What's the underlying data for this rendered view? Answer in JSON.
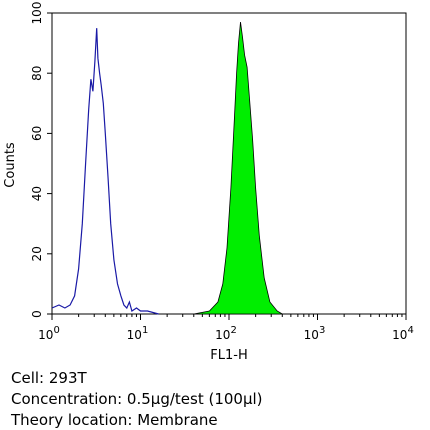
{
  "chart_data": {
    "type": "area",
    "xlabel": "FL1-H",
    "ylabel": "Counts",
    "xscale": "log",
    "xlim": [
      1,
      10000
    ],
    "ylim": [
      0,
      100
    ],
    "x_ticks": [
      {
        "value": 1,
        "base": "10",
        "exp": "0"
      },
      {
        "value": 10,
        "base": "10",
        "exp": "1"
      },
      {
        "value": 100,
        "base": "10",
        "exp": "2"
      },
      {
        "value": 1000,
        "base": "10",
        "exp": "3"
      },
      {
        "value": 10000,
        "base": "10",
        "exp": "4"
      }
    ],
    "y_ticks": [
      {
        "value": 0,
        "label": "0"
      },
      {
        "value": 20,
        "label": "20"
      },
      {
        "value": 40,
        "label": "40"
      },
      {
        "value": 60,
        "label": "60"
      },
      {
        "value": 80,
        "label": "80"
      },
      {
        "value": 100,
        "label": "100"
      }
    ],
    "series": [
      {
        "style": "outline",
        "color": "#1a1aa6",
        "points": [
          [
            1.0,
            2
          ],
          [
            1.2,
            3
          ],
          [
            1.4,
            2
          ],
          [
            1.6,
            3
          ],
          [
            1.8,
            6
          ],
          [
            2.0,
            15
          ],
          [
            2.2,
            30
          ],
          [
            2.4,
            50
          ],
          [
            2.6,
            68
          ],
          [
            2.75,
            78
          ],
          [
            2.9,
            74
          ],
          [
            3.05,
            84
          ],
          [
            3.2,
            95
          ],
          [
            3.3,
            85
          ],
          [
            3.45,
            80
          ],
          [
            3.6,
            76
          ],
          [
            3.8,
            70
          ],
          [
            4.0,
            60
          ],
          [
            4.3,
            45
          ],
          [
            4.6,
            30
          ],
          [
            5.0,
            18
          ],
          [
            5.5,
            10
          ],
          [
            6.0,
            6
          ],
          [
            6.5,
            3
          ],
          [
            7.0,
            2
          ],
          [
            7.5,
            4
          ],
          [
            8.0,
            1
          ],
          [
            9.0,
            2
          ],
          [
            10,
            1
          ],
          [
            12,
            1
          ],
          [
            16,
            0
          ]
        ]
      },
      {
        "style": "filled",
        "color": "#00ee00",
        "points": [
          [
            40,
            0
          ],
          [
            60,
            1
          ],
          [
            75,
            4
          ],
          [
            85,
            10
          ],
          [
            95,
            22
          ],
          [
            105,
            42
          ],
          [
            115,
            65
          ],
          [
            122,
            80
          ],
          [
            128,
            90
          ],
          [
            135,
            97
          ],
          [
            142,
            92
          ],
          [
            150,
            86
          ],
          [
            160,
            82
          ],
          [
            170,
            72
          ],
          [
            185,
            58
          ],
          [
            200,
            42
          ],
          [
            220,
            26
          ],
          [
            250,
            12
          ],
          [
            290,
            4
          ],
          [
            350,
            1
          ],
          [
            400,
            0
          ]
        ]
      }
    ]
  },
  "caption": {
    "cell": "Cell: 293T",
    "concentration": "Concentration: 0.5μg/test (100μl)",
    "location": "Theory location: Membrane"
  }
}
